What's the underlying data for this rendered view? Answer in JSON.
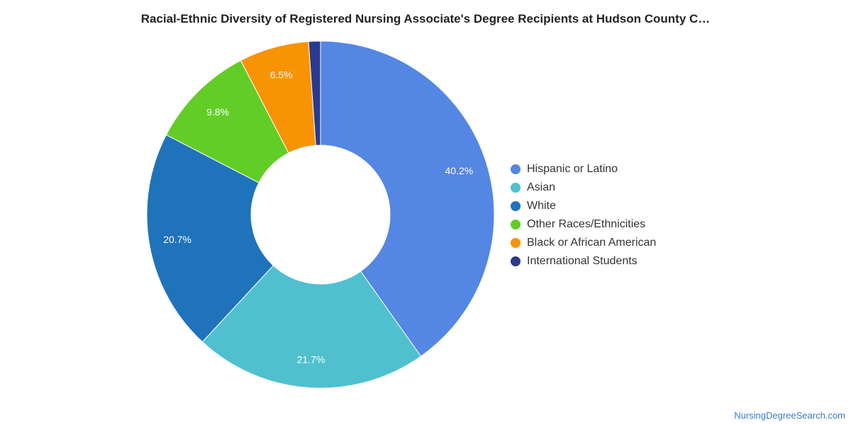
{
  "title": "Racial-Ethnic Diversity of Registered Nursing Associate's Degree Recipients at Hudson County C…",
  "footer": "NursingDegreeSearch.com",
  "chart_data": {
    "type": "pie",
    "donut": true,
    "title": "Racial-Ethnic Diversity of Registered Nursing Associate's Degree Recipients at Hudson County C…",
    "legend_position": "right",
    "slices": [
      {
        "name": "Hispanic or Latino",
        "value": 40.2,
        "label": "40.2%",
        "color": "#5486e3"
      },
      {
        "name": "Asian",
        "value": 21.7,
        "label": "21.7%",
        "color": "#50c0cf"
      },
      {
        "name": "White",
        "value": 20.7,
        "label": "20.7%",
        "color": "#1f73bb"
      },
      {
        "name": "Other Races/Ethnicities",
        "value": 9.8,
        "label": "9.8%",
        "color": "#62cd27"
      },
      {
        "name": "Black or African American",
        "value": 6.5,
        "label": "6.5%",
        "color": "#f89304"
      },
      {
        "name": "International Students",
        "value": 1.1,
        "label": "",
        "color": "#2a3a8c"
      }
    ]
  }
}
